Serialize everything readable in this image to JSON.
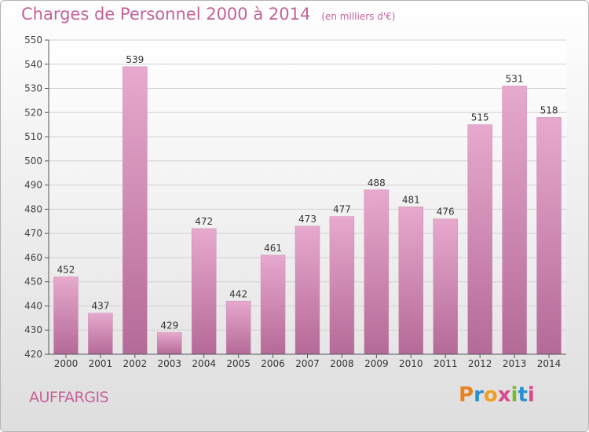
{
  "header": {
    "title": "Charges de Personnel 2000 à 2014",
    "subtitle": "(en milliers d'€)"
  },
  "footer": {
    "commune": "AUFFARGIS",
    "logo_text": "Proxiti",
    "logo_colors": [
      "#e8821e",
      "#2a8fd0",
      "#f0a020",
      "#d94a8c",
      "#7ab830",
      "#2a8fd0",
      "#d94a8c"
    ]
  },
  "chart_data": {
    "type": "bar",
    "title": "Charges de Personnel 2000 à 2014",
    "subtitle": "(en milliers d'€)",
    "categories": [
      "2000",
      "2001",
      "2002",
      "2003",
      "2004",
      "2005",
      "2006",
      "2007",
      "2008",
      "2009",
      "2010",
      "2011",
      "2012",
      "2013",
      "2014"
    ],
    "values": [
      452,
      437,
      539,
      429,
      472,
      442,
      461,
      473,
      477,
      488,
      481,
      476,
      515,
      531,
      518
    ],
    "ylim": [
      420,
      550
    ],
    "yticks": [
      420,
      430,
      440,
      450,
      460,
      470,
      480,
      490,
      500,
      510,
      520,
      530,
      540,
      550
    ],
    "grid": true,
    "bar_color_top": "#e7a9cd",
    "bar_color_bottom": "#b46a97"
  }
}
